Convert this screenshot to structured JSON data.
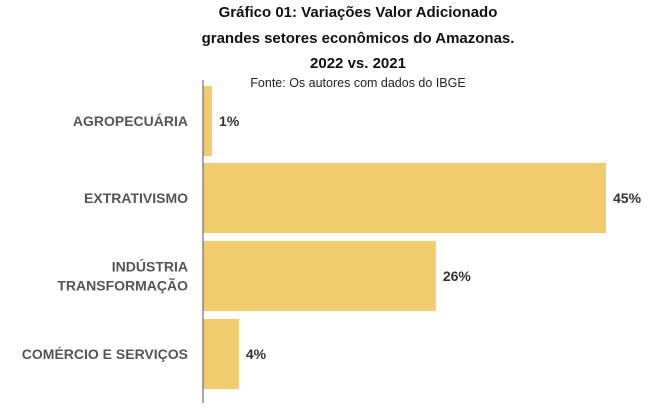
{
  "chart_data": {
    "type": "bar",
    "orientation": "horizontal",
    "title_lines": [
      "Gráfico 01: Variações Valor Adicionado",
      "grandes setores econômicos do Amazonas.",
      "2022 vs. 2021"
    ],
    "source": "Fonte: Os autores com dados do IBGE",
    "categories": [
      [
        "AGROPECUÁRIA"
      ],
      [
        "EXTRATIVISMO"
      ],
      [
        "INDÚSTRIA",
        "TRANSFORMAÇÃO"
      ],
      [
        "COMÉRCIO E SERVIÇOS"
      ]
    ],
    "values": [
      1,
      45,
      26,
      4
    ],
    "value_labels": [
      "1%",
      "45%",
      "26%",
      "4%"
    ],
    "xlim": [
      0,
      45
    ],
    "grid": false,
    "legend": "none",
    "bar_color": "#F0CC6E",
    "text_color": "#333333",
    "label_color": "#555555",
    "axis_color": "#555555"
  }
}
